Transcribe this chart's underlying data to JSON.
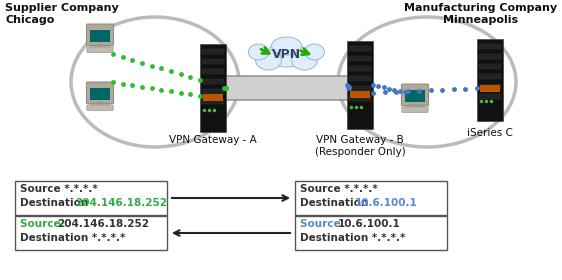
{
  "bg_color": "#ffffff",
  "title_left": "Supplier Company\nChicago",
  "title_right": "Manufacturing Company\nMinneapolis",
  "label_gw_a": "VPN Gateway - A",
  "label_gw_b": "VPN Gateway - B\n(Responder Only)",
  "label_iseries": "iSeries C",
  "label_vpn": "VPN",
  "box1_line1": "Source *.*.*.*",
  "box1_line2_label": "Destination ",
  "box1_line2_value": "204.146.18.252",
  "box1_line2_color": "#33aa44",
  "box2_line1": "Source *.*.*.*",
  "box2_line2_label": "Destination ",
  "box2_line2_value": "10.6.100.1",
  "box2_line2_color": "#5588cc",
  "box3_line1_label": "Source ",
  "box3_line1_value": "204.146.18.252",
  "box3_line1_color": "#33aa44",
  "box3_line2": "Destination *.*.*.*",
  "box4_line1_label": "Source ",
  "box4_line1_value": "10.6.100.1",
  "box4_line1_color": "#5588cc",
  "box4_line2": "Destination *.*.*.*",
  "green_dot_color": "#33bb33",
  "blue_dot_color": "#4477bb",
  "tunnel_color_face": "#d0d0d0",
  "tunnel_color_edge": "#888888",
  "cloud_face": "#ddeeff",
  "cloud_edge": "#aabbcc",
  "oval_edge": "#bbbbbb",
  "server_face": "#111111",
  "server_detail": "#cc6600",
  "computer_body": "#aaaaaa",
  "computer_screen": "#008888",
  "arrow_color": "#222222",
  "text_color": "#111111"
}
